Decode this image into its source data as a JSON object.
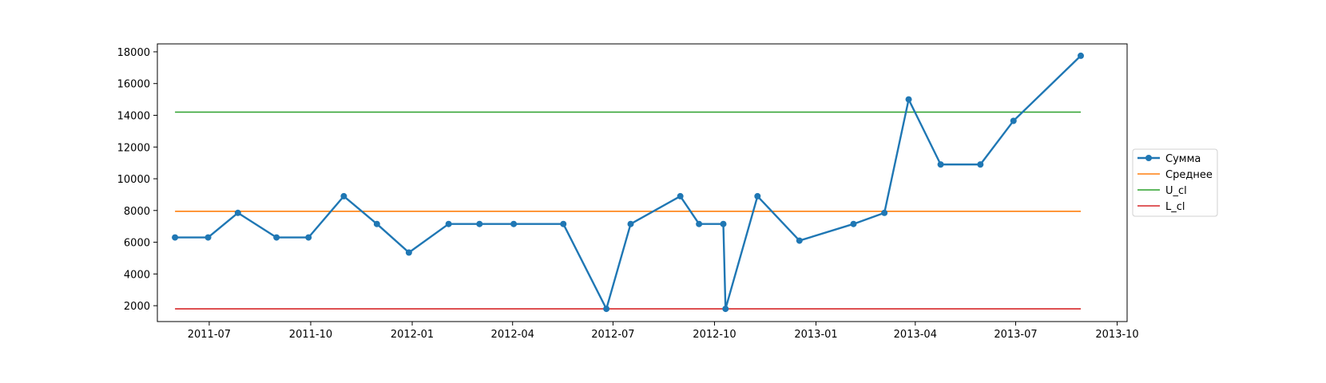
{
  "chart_data": {
    "type": "line",
    "title": "",
    "xlabel": "",
    "ylabel": "",
    "x_axis": {
      "type": "date",
      "range": [
        "2011-05-15",
        "2013-10-10"
      ],
      "ticks": [
        "2011-07-01",
        "2011-10-01",
        "2012-01-01",
        "2012-04-01",
        "2012-07-01",
        "2012-10-01",
        "2013-01-01",
        "2013-04-01",
        "2013-07-01",
        "2013-10-01"
      ],
      "tick_labels": [
        "2011-07",
        "2011-10",
        "2012-01",
        "2012-04",
        "2012-07",
        "2012-10",
        "2013-01",
        "2013-04",
        "2013-07",
        "2013-10"
      ]
    },
    "y_axis": {
      "range": [
        1000,
        18500
      ],
      "ticks": [
        2000,
        4000,
        6000,
        8000,
        10000,
        12000,
        14000,
        16000,
        18000
      ],
      "tick_labels": [
        "2000",
        "4000",
        "6000",
        "8000",
        "10000",
        "12000",
        "14000",
        "16000",
        "18000"
      ]
    },
    "grid": false,
    "legend": {
      "placement": "right-outside"
    },
    "series": [
      {
        "name": "Сумма",
        "color": "#1f77b4",
        "marker": "circle",
        "points": [
          {
            "x": "2011-05-31",
            "y": 6300
          },
          {
            "x": "2011-06-30",
            "y": 6300
          },
          {
            "x": "2011-07-27",
            "y": 7850
          },
          {
            "x": "2011-08-31",
            "y": 6300
          },
          {
            "x": "2011-09-29",
            "y": 6300
          },
          {
            "x": "2011-10-31",
            "y": 8900
          },
          {
            "x": "2011-11-30",
            "y": 7150
          },
          {
            "x": "2011-12-29",
            "y": 5350
          },
          {
            "x": "2012-02-03",
            "y": 7150
          },
          {
            "x": "2012-03-02",
            "y": 7150
          },
          {
            "x": "2012-04-02",
            "y": 7150
          },
          {
            "x": "2012-05-17",
            "y": 7150
          },
          {
            "x": "2012-06-25",
            "y": 1800
          },
          {
            "x": "2012-07-17",
            "y": 7150
          },
          {
            "x": "2012-08-31",
            "y": 8900
          },
          {
            "x": "2012-09-17",
            "y": 7150
          },
          {
            "x": "2012-10-09",
            "y": 7150
          },
          {
            "x": "2012-10-11",
            "y": 1800
          },
          {
            "x": "2012-11-09",
            "y": 8900
          },
          {
            "x": "2012-12-17",
            "y": 6100
          },
          {
            "x": "2013-02-04",
            "y": 7150
          },
          {
            "x": "2013-03-04",
            "y": 7850
          },
          {
            "x": "2013-03-26",
            "y": 15000
          },
          {
            "x": "2013-04-24",
            "y": 10900
          },
          {
            "x": "2013-05-30",
            "y": 10900
          },
          {
            "x": "2013-06-29",
            "y": 13650
          },
          {
            "x": "2013-08-29",
            "y": 17750
          }
        ]
      },
      {
        "name": "Среднее",
        "color": "#ff7f0e",
        "marker": "none",
        "x_range": [
          "2011-05-31",
          "2013-08-29"
        ],
        "y": 7950
      },
      {
        "name": "U_cl",
        "color": "#2ca02c",
        "marker": "none",
        "x_range": [
          "2011-05-31",
          "2013-08-29"
        ],
        "y": 14200
      },
      {
        "name": "L_cl",
        "color": "#d62728",
        "marker": "none",
        "x_range": [
          "2011-05-31",
          "2013-08-29"
        ],
        "y": 1800
      }
    ]
  }
}
